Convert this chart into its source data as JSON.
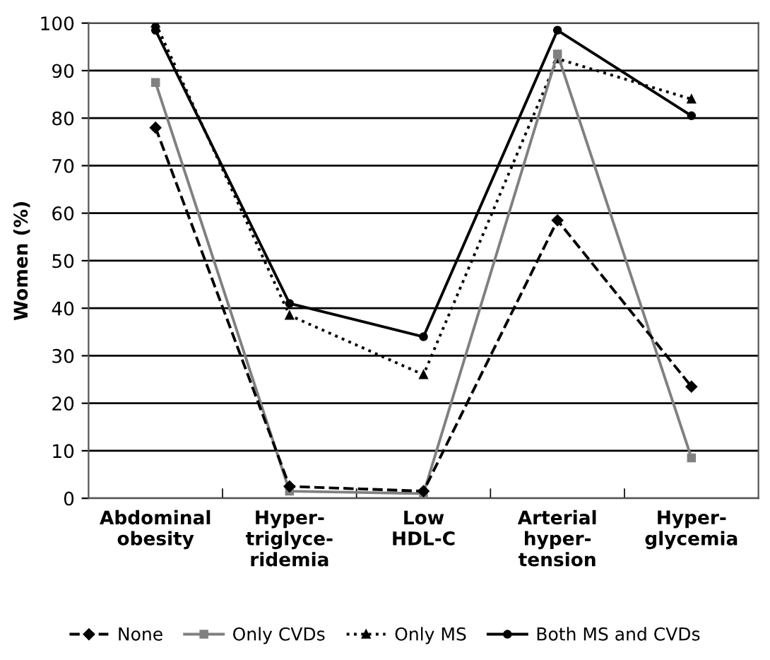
{
  "chart_data": {
    "type": "line",
    "ylabel": "Women (%)",
    "categories": [
      "Abdominal\nobesity",
      "Hyper-\ntriglyce-\nridemia",
      "Low\nHDL-C",
      "Arterial\nhyper-\ntension",
      "Hyper-\nglycemia"
    ],
    "series": [
      {
        "name": "None",
        "color": "#000000",
        "marker": "diamond",
        "line_style": "dashed",
        "values": [
          78,
          2.5,
          1.5,
          58.5,
          23.5
        ]
      },
      {
        "name": "Only CVDs",
        "color": "#808080",
        "marker": "square",
        "line_style": "solid",
        "values": [
          87.5,
          1.5,
          1,
          93.5,
          8.5
        ]
      },
      {
        "name": "Only MS",
        "color": "#000000",
        "marker": "triangle",
        "line_style": "dotted",
        "values": [
          100,
          38.5,
          26,
          92.5,
          84
        ]
      },
      {
        "name": "Both MS and CVDs",
        "color": "#000000",
        "marker": "circle",
        "line_style": "solid",
        "values": [
          98.5,
          41,
          34,
          98.5,
          80.5
        ]
      }
    ],
    "ylim": [
      0,
      100
    ],
    "yticks": [
      0,
      10,
      20,
      30,
      40,
      50,
      60,
      70,
      80,
      90,
      100
    ],
    "grid": "y",
    "legend": "bottom"
  }
}
